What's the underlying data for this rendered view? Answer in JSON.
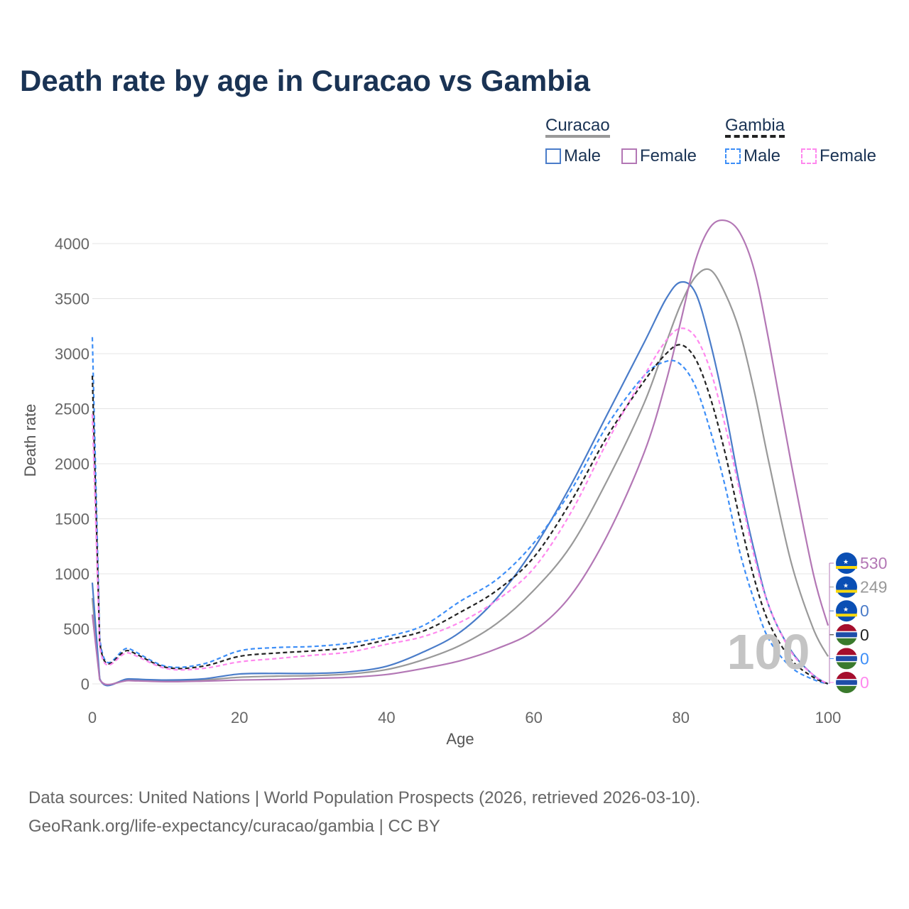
{
  "chart_data": {
    "type": "line",
    "title": "Death rate by age in Curacao vs Gambia",
    "xlabel": "Age",
    "ylabel": "Death rate",
    "xlim": [
      0,
      100
    ],
    "ylim": [
      0,
      4000
    ],
    "xticks": [
      0,
      20,
      40,
      60,
      80,
      100
    ],
    "yticks": [
      0,
      500,
      1000,
      1500,
      2000,
      2500,
      3000,
      3500,
      4000
    ],
    "x": [
      0,
      1,
      5,
      10,
      15,
      20,
      25,
      30,
      35,
      40,
      45,
      50,
      55,
      60,
      65,
      70,
      75,
      78,
      80,
      82,
      84,
      86,
      88,
      90,
      92,
      95,
      98,
      100
    ],
    "series": [
      {
        "name": "Curacao Total",
        "color": "#999999",
        "dash": false,
        "values": [
          780,
          45,
          40,
          30,
          35,
          60,
          70,
          75,
          90,
          130,
          220,
          350,
          550,
          850,
          1250,
          1850,
          2550,
          3100,
          3450,
          3700,
          3760,
          3550,
          3200,
          2650,
          2000,
          1100,
          500,
          249
        ]
      },
      {
        "name": "Curacao Male",
        "color": "#4a7cc9",
        "dash": false,
        "values": [
          920,
          50,
          45,
          35,
          45,
          90,
          95,
          95,
          110,
          160,
          290,
          470,
          780,
          1230,
          1800,
          2450,
          3100,
          3500,
          3650,
          3550,
          3100,
          2500,
          1800,
          1200,
          700,
          300,
          80,
          0
        ]
      },
      {
        "name": "Curacao Female",
        "color": "#b377b5",
        "dash": false,
        "values": [
          630,
          40,
          30,
          20,
          25,
          35,
          40,
          50,
          60,
          85,
          140,
          210,
          320,
          480,
          800,
          1350,
          2100,
          2750,
          3300,
          3850,
          4150,
          4210,
          4100,
          3750,
          3100,
          2000,
          1000,
          530
        ]
      },
      {
        "name": "Gambia Male",
        "color": "#3d8ef7",
        "dash": true,
        "values": [
          3150,
          420,
          320,
          160,
          180,
          300,
          330,
          340,
          370,
          430,
          530,
          750,
          950,
          1280,
          1750,
          2350,
          2800,
          2930,
          2900,
          2700,
          2300,
          1800,
          1200,
          750,
          400,
          150,
          40,
          0
        ]
      },
      {
        "name": "Gambia Total",
        "color": "#222222",
        "dash": true,
        "values": [
          2800,
          380,
          300,
          150,
          160,
          250,
          280,
          300,
          330,
          400,
          480,
          650,
          850,
          1150,
          1650,
          2250,
          2750,
          3000,
          3080,
          2950,
          2600,
          2100,
          1500,
          950,
          550,
          220,
          60,
          0
        ]
      },
      {
        "name": "Gambia Female",
        "color": "#ff88ee",
        "dash": true,
        "values": [
          2450,
          340,
          280,
          140,
          140,
          200,
          230,
          260,
          290,
          360,
          430,
          560,
          760,
          1050,
          1550,
          2200,
          2800,
          3120,
          3230,
          3150,
          2850,
          2350,
          1750,
          1150,
          700,
          290,
          80,
          0
        ]
      }
    ],
    "current_age": "100",
    "end_labels": [
      {
        "country": "curacao",
        "value": "530",
        "color": "#b377b5"
      },
      {
        "country": "curacao",
        "value": "249",
        "color": "#999999"
      },
      {
        "country": "curacao",
        "value": "0",
        "color": "#4a7cc9"
      },
      {
        "country": "gambia",
        "value": "0",
        "color": "#222222"
      },
      {
        "country": "gambia",
        "value": "0",
        "color": "#3d8ef7"
      },
      {
        "country": "gambia",
        "value": "0",
        "color": "#ff88ee"
      }
    ]
  },
  "legend": {
    "curacao": "Curacao",
    "gambia": "Gambia",
    "male": "Male",
    "female": "Female"
  },
  "footer": {
    "line1": "Data sources: United Nations | World Population Prospects (2026, retrieved 2026-03-10).",
    "line2": "GeoRank.org/life-expectancy/curacao/gambia | CC BY"
  }
}
